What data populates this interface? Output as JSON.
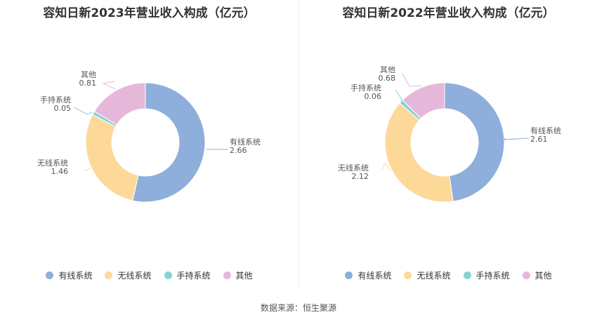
{
  "colors": {
    "有线系统": "#8eaedb",
    "无线系统": "#fdd999",
    "手持系统": "#87d3d6",
    "其他": "#e5b8da"
  },
  "source": "数据来源：恒生聚源",
  "chart_data": [
    {
      "type": "pie",
      "title": "容知日新2023年营业收入构成（亿元）",
      "legend": [
        "有线系统",
        "无线系统",
        "手持系统",
        "其他"
      ],
      "slices": [
        {
          "name": "有线系统",
          "value": 2.66,
          "value_label": "2.66"
        },
        {
          "name": "无线系统",
          "value": 1.46,
          "value_label": "1.46"
        },
        {
          "name": "手持系统",
          "value": 0.05,
          "value_label": "0.05"
        },
        {
          "name": "其他",
          "value": 0.81,
          "value_label": "0.81"
        }
      ]
    },
    {
      "type": "pie",
      "title": "容知日新2022年营业收入构成（亿元）",
      "legend": [
        "有线系统",
        "无线系统",
        "手持系统",
        "其他"
      ],
      "slices": [
        {
          "name": "有线系统",
          "value": 2.61,
          "value_label": "2.61"
        },
        {
          "name": "无线系统",
          "value": 2.12,
          "value_label": "2.12"
        },
        {
          "name": "手持系统",
          "value": 0.06,
          "value_label": "0.06"
        },
        {
          "name": "其他",
          "value": 0.68,
          "value_label": "0.68"
        }
      ]
    }
  ]
}
